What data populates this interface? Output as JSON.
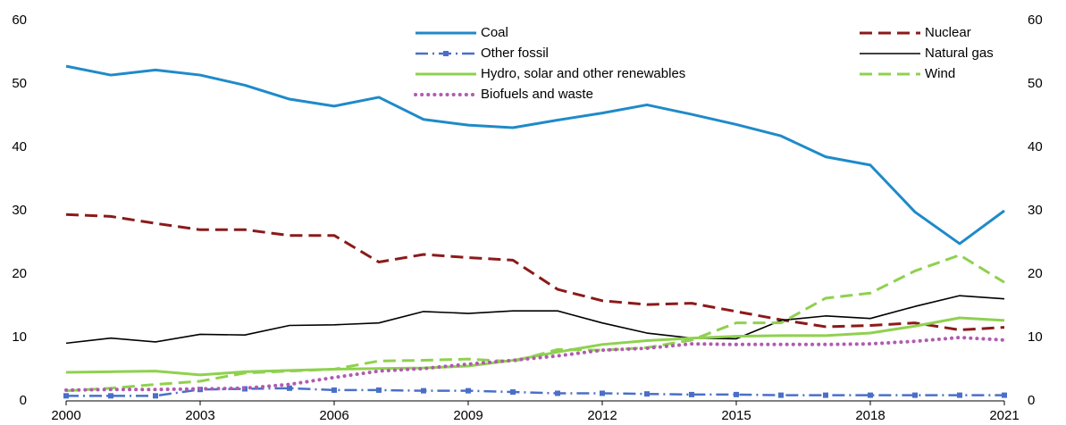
{
  "chart_data": {
    "type": "line",
    "x": [
      2000,
      2001,
      2002,
      2003,
      2004,
      2005,
      2006,
      2007,
      2008,
      2009,
      2010,
      2011,
      2012,
      2013,
      2014,
      2015,
      2016,
      2017,
      2018,
      2019,
      2020,
      2021
    ],
    "xlim": [
      2000,
      2021
    ],
    "xticks": [
      2000,
      2003,
      2006,
      2009,
      2012,
      2015,
      2018,
      2021
    ],
    "ylim": [
      0,
      60
    ],
    "yticks": [
      0,
      10,
      20,
      30,
      40,
      50,
      60
    ],
    "y2lim": [
      0,
      60
    ],
    "y2ticks": [
      0,
      10,
      20,
      30,
      40,
      50,
      60
    ],
    "grid": false,
    "legend": "top",
    "series": [
      {
        "name": "Coal",
        "color": "#1f8ac9",
        "style": "solid",
        "values": [
          52.8,
          51.4,
          52.2,
          51.4,
          49.8,
          47.6,
          46.5,
          47.9,
          44.4,
          43.5,
          43.1,
          44.3,
          45.4,
          46.7,
          45.2,
          43.6,
          41.8,
          38.5,
          37.2,
          29.8,
          24.8,
          30.0
        ]
      },
      {
        "name": "Nuclear",
        "color": "#8b1a1a",
        "style": "dashed",
        "values": [
          29.4,
          29.1,
          28.0,
          27.0,
          27.0,
          26.1,
          26.1,
          21.9,
          23.1,
          22.6,
          22.2,
          17.6,
          15.8,
          15.2,
          15.4,
          14.1,
          12.8,
          11.7,
          11.9,
          12.3,
          11.2,
          11.6
        ]
      },
      {
        "name": "Other fossil",
        "color": "#4a6fc9",
        "style": "dashdot",
        "values": [
          0.8,
          0.8,
          0.8,
          1.8,
          1.9,
          2.0,
          1.7,
          1.7,
          1.6,
          1.6,
          1.4,
          1.2,
          1.2,
          1.1,
          1.0,
          1.0,
          0.9,
          0.9,
          0.9,
          0.9,
          0.9,
          0.9
        ]
      },
      {
        "name": "Natural gas",
        "color": "#000000",
        "style": "thin",
        "values": [
          9.1,
          9.9,
          9.3,
          10.5,
          10.4,
          11.9,
          12.0,
          12.3,
          14.1,
          13.8,
          14.2,
          14.2,
          12.3,
          10.7,
          9.9,
          9.8,
          12.7,
          13.4,
          13.0,
          14.9,
          16.6,
          16.1
        ]
      },
      {
        "name": "Hydro, solar and other renewables",
        "color": "#8fd14f",
        "style": "solid",
        "values": [
          4.5,
          4.6,
          4.7,
          4.1,
          4.6,
          4.8,
          5.0,
          5.1,
          5.2,
          5.5,
          6.4,
          7.7,
          8.9,
          9.5,
          9.9,
          10.2,
          10.3,
          10.3,
          10.7,
          11.8,
          13.1,
          12.7
        ]
      },
      {
        "name": "Wind",
        "color": "#8fd14f",
        "style": "dashed",
        "values": [
          1.6,
          2.0,
          2.6,
          3.1,
          4.4,
          4.7,
          5.0,
          6.3,
          6.4,
          6.6,
          6.2,
          8.1,
          8.0,
          8.4,
          9.6,
          12.3,
          12.3,
          16.2,
          17.0,
          20.5,
          23.0,
          18.7
        ]
      },
      {
        "name": "Biofuels and waste",
        "color": "#b05bb0",
        "style": "dotted",
        "values": [
          1.7,
          1.8,
          1.8,
          1.9,
          2.0,
          2.6,
          3.7,
          4.7,
          5.1,
          5.8,
          6.4,
          7.1,
          8.0,
          8.3,
          9.0,
          8.9,
          8.9,
          8.9,
          9.0,
          9.4,
          10.0,
          9.6
        ]
      }
    ]
  }
}
